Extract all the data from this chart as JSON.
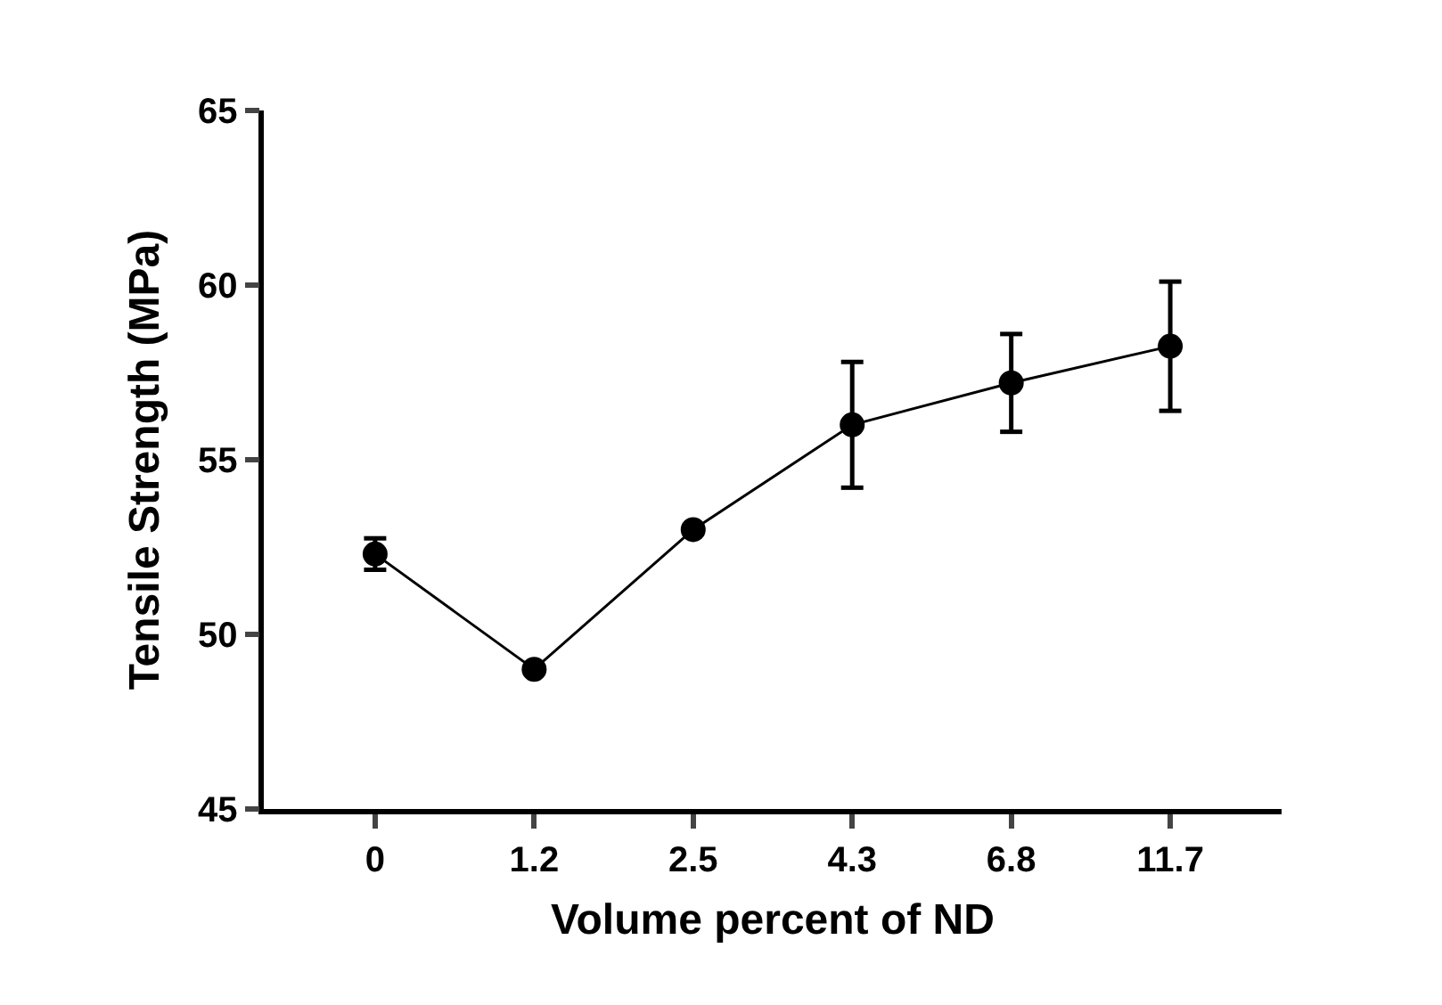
{
  "chart_data": {
    "type": "line",
    "xlabel": "Volume percent of ND",
    "ylabel": "Tensile Strength (MPa)",
    "categories": [
      "0",
      "1.2",
      "2.5",
      "4.3",
      "6.8",
      "11.7"
    ],
    "series": [
      {
        "color": "#000000",
        "values": [
          52.3,
          49.0,
          53.0,
          56.0,
          57.2,
          58.25
        ],
        "errors": [
          0.45,
          null,
          null,
          1.8,
          1.4,
          1.85
        ]
      }
    ],
    "ylim": [
      45,
      65
    ],
    "yticks": [
      45,
      50,
      55,
      60,
      65
    ],
    "marker": "circle",
    "line_style": "solid"
  }
}
